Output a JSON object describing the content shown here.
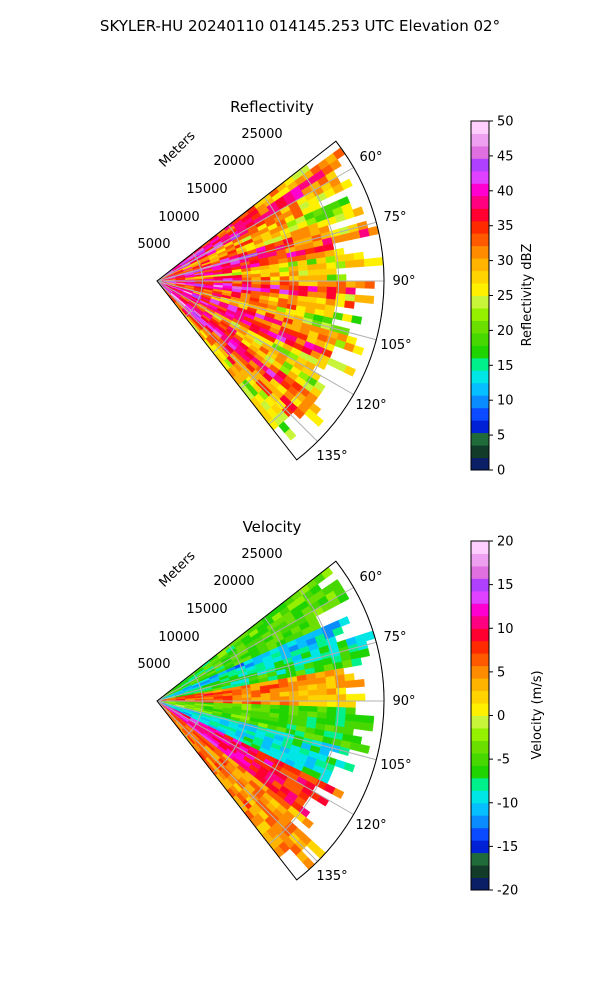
{
  "figure": {
    "suptitle": "SKYLER-HU  20240110  014145.253 UTC Elevation 02°"
  },
  "chart_data": [
    {
      "type": "heatmap",
      "projection": "polar-sector",
      "title": "Reflectivity",
      "radial_axis_label": "Meters",
      "radial_ticks": [
        "5000",
        "10000",
        "15000",
        "20000",
        "25000"
      ],
      "radial_tick_values": [
        5000,
        10000,
        15000,
        20000,
        25000
      ],
      "radial_range": [
        0,
        25000
      ],
      "azimuth_range_deg": [
        52,
        142
      ],
      "azimuth_ticks": [
        "60°",
        "75°",
        "90°",
        "105°",
        "120°",
        "135°"
      ],
      "azimuth_tick_values": [
        60,
        75,
        90,
        105,
        120,
        135
      ],
      "grid": true,
      "colorbar": {
        "label": "Reflectivity dBZ",
        "range": [
          0,
          50
        ],
        "ticks": [
          "0",
          "5",
          "10",
          "15",
          "20",
          "25",
          "30",
          "35",
          "40",
          "45",
          "50"
        ],
        "tick_values": [
          0,
          5,
          10,
          15,
          20,
          25,
          30,
          35,
          40,
          45,
          50
        ],
        "colors": [
          "#0b1f66",
          "#123b2a",
          "#1f6b3a",
          "#0021d6",
          "#0a4bff",
          "#0a8cff",
          "#06bfff",
          "#00e6e6",
          "#00f08c",
          "#1fd400",
          "#46d800",
          "#6be000",
          "#95f000",
          "#c8f53a",
          "#fff000",
          "#ffd400",
          "#ffb400",
          "#ff8c00",
          "#ff5a00",
          "#ff2a00",
          "#ff0030",
          "#ff0080",
          "#ff00d0",
          "#e040ff",
          "#b040ff",
          "#e070e0",
          "#f0a0f0",
          "#ffd0ff"
        ]
      },
      "field_description_values": {
        "near_range_dbz": [
          35,
          42
        ],
        "mid_range_dbz": [
          28,
          35
        ],
        "far_range_dbz": [
          20,
          28
        ]
      }
    },
    {
      "type": "heatmap",
      "projection": "polar-sector",
      "title": "Velocity",
      "radial_axis_label": "Meters",
      "radial_ticks": [
        "5000",
        "10000",
        "15000",
        "20000",
        "25000"
      ],
      "radial_tick_values": [
        5000,
        10000,
        15000,
        20000,
        25000
      ],
      "radial_range": [
        0,
        25000
      ],
      "azimuth_range_deg": [
        52,
        142
      ],
      "azimuth_ticks": [
        "60°",
        "75°",
        "90°",
        "105°",
        "120°",
        "135°"
      ],
      "azimuth_tick_values": [
        60,
        75,
        90,
        105,
        120,
        135
      ],
      "grid": true,
      "colorbar": {
        "label": "Velocity (m/s)",
        "range": [
          -20,
          20
        ],
        "ticks": [
          "-20",
          "-15",
          "-10",
          "-5",
          "0",
          "5",
          "10",
          "15",
          "20"
        ],
        "tick_values": [
          -20,
          -15,
          -10,
          -5,
          0,
          5,
          10,
          15,
          20
        ],
        "colors": [
          "#0b1f66",
          "#123b2a",
          "#1f6b3a",
          "#0021d6",
          "#0a4bff",
          "#0a8cff",
          "#06bfff",
          "#00e6e6",
          "#00f08c",
          "#1fd400",
          "#46d800",
          "#6be000",
          "#95f000",
          "#c8f53a",
          "#fff000",
          "#ffd400",
          "#ffb400",
          "#ff8c00",
          "#ff5a00",
          "#ff2a00",
          "#ff0030",
          "#ff0080",
          "#ff00d0",
          "#e040ff",
          "#b040ff",
          "#e070e0",
          "#f0a0f0",
          "#ffd0ff"
        ]
      },
      "field_description_values": {
        "north_sector_mps": [
          -12,
          -6
        ],
        "center_band_mps": [
          0,
          12
        ],
        "south_sector_mps": [
          2,
          16
        ]
      }
    }
  ]
}
